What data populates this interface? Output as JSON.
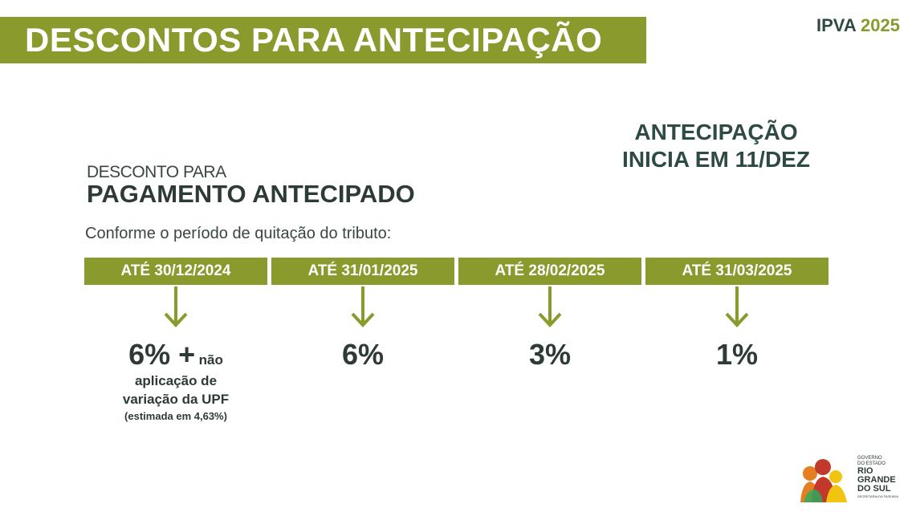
{
  "header": {
    "title": "DESCONTOS PARA ANTECIPAÇÃO",
    "ipva_label": "IPVA",
    "ipva_year": "2025"
  },
  "notice": {
    "line1": "ANTECIPAÇÃO",
    "line2": "INICIA EM 11/DEZ"
  },
  "section": {
    "subtitle": "DESCONTO PARA",
    "title": "PAGAMENTO ANTECIPADO",
    "description": "Conforme o período de quitação do tributo:"
  },
  "periods": [
    {
      "date": "ATÉ 30/12/2024",
      "value": "6% +",
      "value_suffix": "não",
      "detail_line1": "aplicação de",
      "detail_line2": "variação da UPF",
      "detail_note": "(estimada em 4,63%)"
    },
    {
      "date": "ATÉ 31/01/2025",
      "value": "6%"
    },
    {
      "date": "ATÉ 28/02/2025",
      "value": "3%"
    },
    {
      "date": "ATÉ 31/03/2025",
      "value": "1%"
    }
  ],
  "logo": {
    "line1": "GOVERNO",
    "line2": "DO ESTADO",
    "line3": "RIO",
    "line4": "GRANDE",
    "line5": "DO SUL",
    "line6": "SECRETARIA DA FAZENDA"
  },
  "colors": {
    "accent": "#8a9a2c",
    "text_dark": "#2e3a36",
    "logo_red": "#c0392b",
    "logo_orange": "#e67e22",
    "logo_yellow": "#f1c40f",
    "logo_green": "#27ae60"
  }
}
